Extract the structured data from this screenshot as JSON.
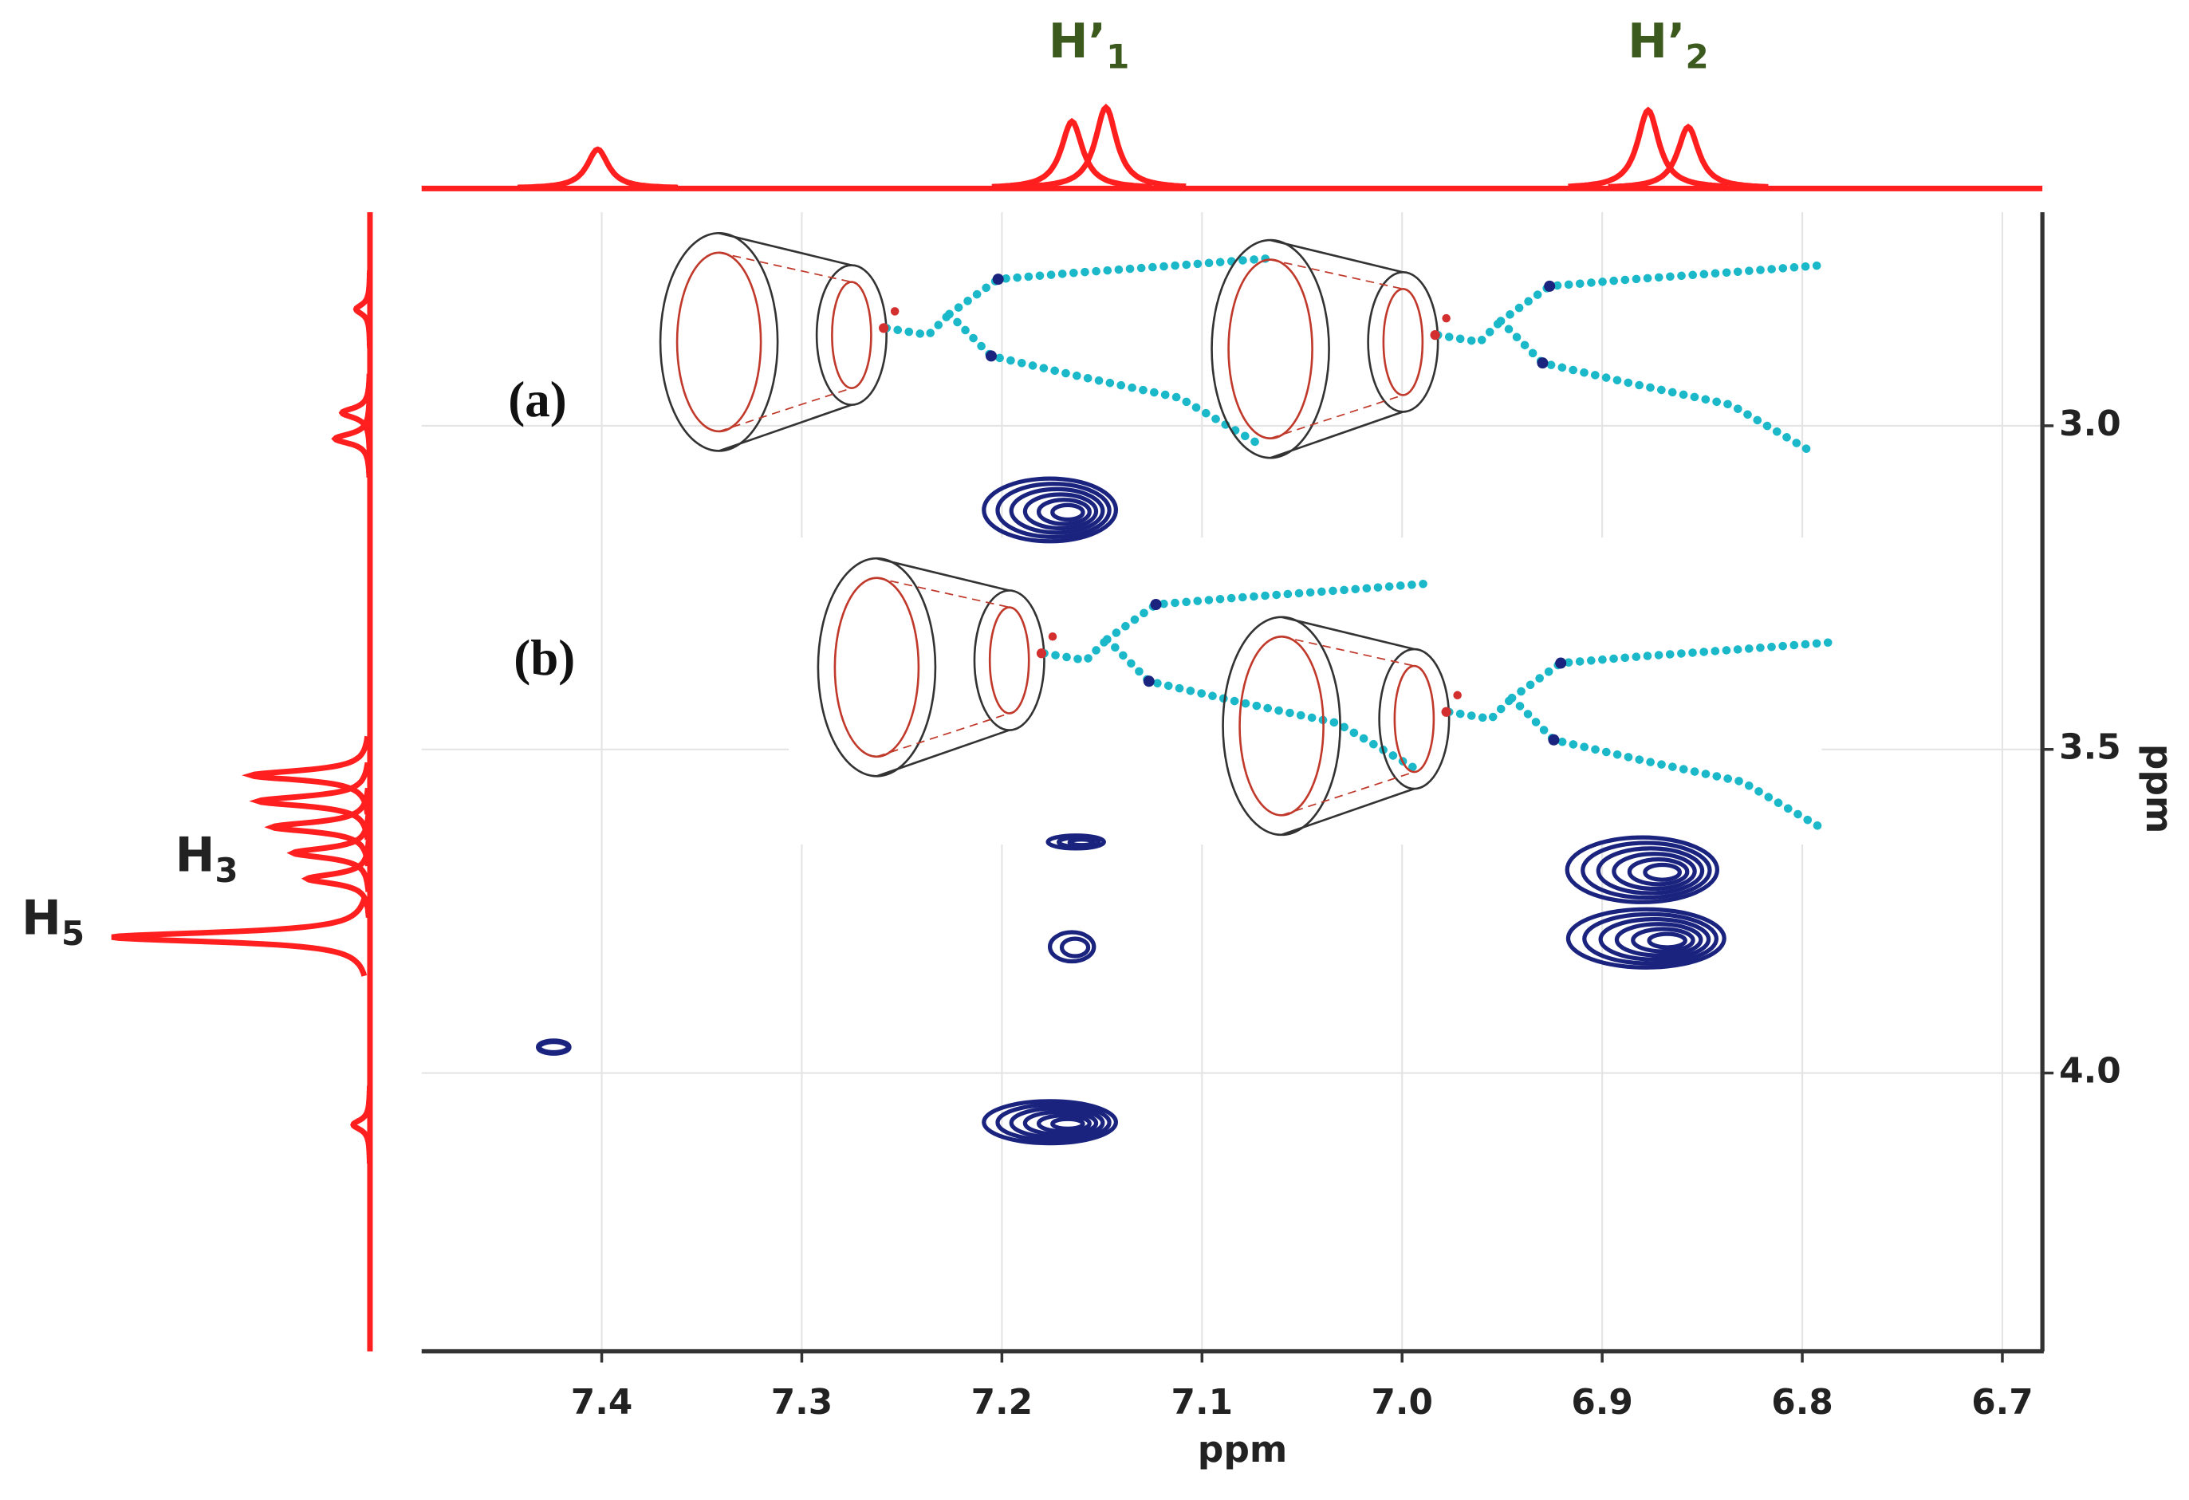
{
  "chart_data": {
    "type": "nmr2d",
    "xlabel": "ppm",
    "ylabel": "ppm",
    "xlim": [
      7.49,
      6.68
    ],
    "ylim": [
      2.67,
      4.43
    ],
    "xticks": [
      7.4,
      7.3,
      7.2,
      7.1,
      {
        "value": 7,
        "label": "7.0"
      },
      6.9,
      6.8,
      6.7
    ],
    "yticks": [
      {
        "value": 3,
        "label": "3.0"
      },
      3.5,
      {
        "value": 4,
        "label": "4.0"
      }
    ],
    "grid": true,
    "peaks": {
      "color": "#1a237e",
      "x": [
        7.176,
        7.163,
        7.165,
        7.424,
        7.176,
        6.88,
        6.878
      ],
      "y": [
        3.13,
        3.643,
        3.805,
        3.96,
        4.076,
        3.686,
        3.792
      ],
      "x_width": [
        0.066,
        0.028,
        0.022,
        0.015,
        0.066,
        0.075,
        0.078
      ],
      "y_width": [
        0.097,
        0.02,
        0.045,
        0.018,
        0.065,
        0.1,
        0.09
      ]
    },
    "top_projection": {
      "color": "#ff1f1f",
      "x": [
        7.402,
        7.165,
        7.148,
        6.877,
        6.857
      ],
      "heights": [
        28,
        48,
        58,
        56,
        44
      ]
    },
    "side_projection": {
      "color": "#ff1f1f",
      "y": [
        2.82,
        2.98,
        3.02,
        3.54,
        3.58,
        3.62,
        3.66,
        3.7,
        3.79,
        4.08
      ],
      "heights": [
        10,
        20,
        25,
        85,
        80,
        70,
        55,
        45,
        185,
        12
      ]
    },
    "annotations": {
      "top": [
        {
          "text": "H’",
          "sub": "1"
        },
        {
          "text": "H’",
          "sub": "2"
        }
      ],
      "side": [
        {
          "text": "H",
          "sub": "3"
        },
        {
          "text": "H",
          "sub": "5"
        }
      ]
    },
    "panel_labels": [
      "(a)",
      "(b)"
    ]
  }
}
